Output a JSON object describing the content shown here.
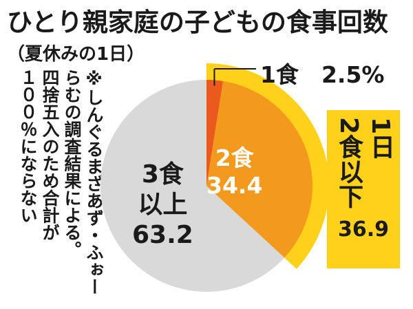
{
  "title": "ひとり親家庭の子どもの食事回数",
  "subtitle": "（夏休みの1日）",
  "note": "※しんぐるまざあず・ふぉーらむの調査結果による。四捨五入のため合計が１００％にならない",
  "note_lines": [
    "※しんぐるまざあず・ふぉー",
    "らむの調査結果による。",
    "四捨五入のため合計が",
    "１００％にならない"
  ],
  "callout_1meal": "1食　2.5%",
  "slice_2_label": "2食",
  "slice_2_value": "34.4",
  "slice_3_label_line1": "3食",
  "slice_3_label_line2": "以上",
  "slice_3_value": "63.2",
  "group_label_col1": "1日",
  "group_label_col2": "2食以下",
  "group_value": "36.9",
  "colors": {
    "one_meal": "#ea5a1e",
    "two_meals": "#f39a1e",
    "three_plus": "#d9d9d9",
    "group_band": "#ffd11a",
    "callout_line": "#1a1a1a"
  },
  "chart_data": {
    "type": "pie",
    "title": "ひとり親家庭の子どもの食事回数",
    "subtitle": "（夏休みの1日）",
    "unit": "%",
    "slices": [
      {
        "name": "1食",
        "value": 2.5
      },
      {
        "name": "2食",
        "value": 34.4
      },
      {
        "name": "3食以上",
        "value": 63.2
      }
    ],
    "group": {
      "name": "1日2食以下",
      "value": 36.9,
      "members": [
        "1食",
        "2食"
      ]
    }
  }
}
